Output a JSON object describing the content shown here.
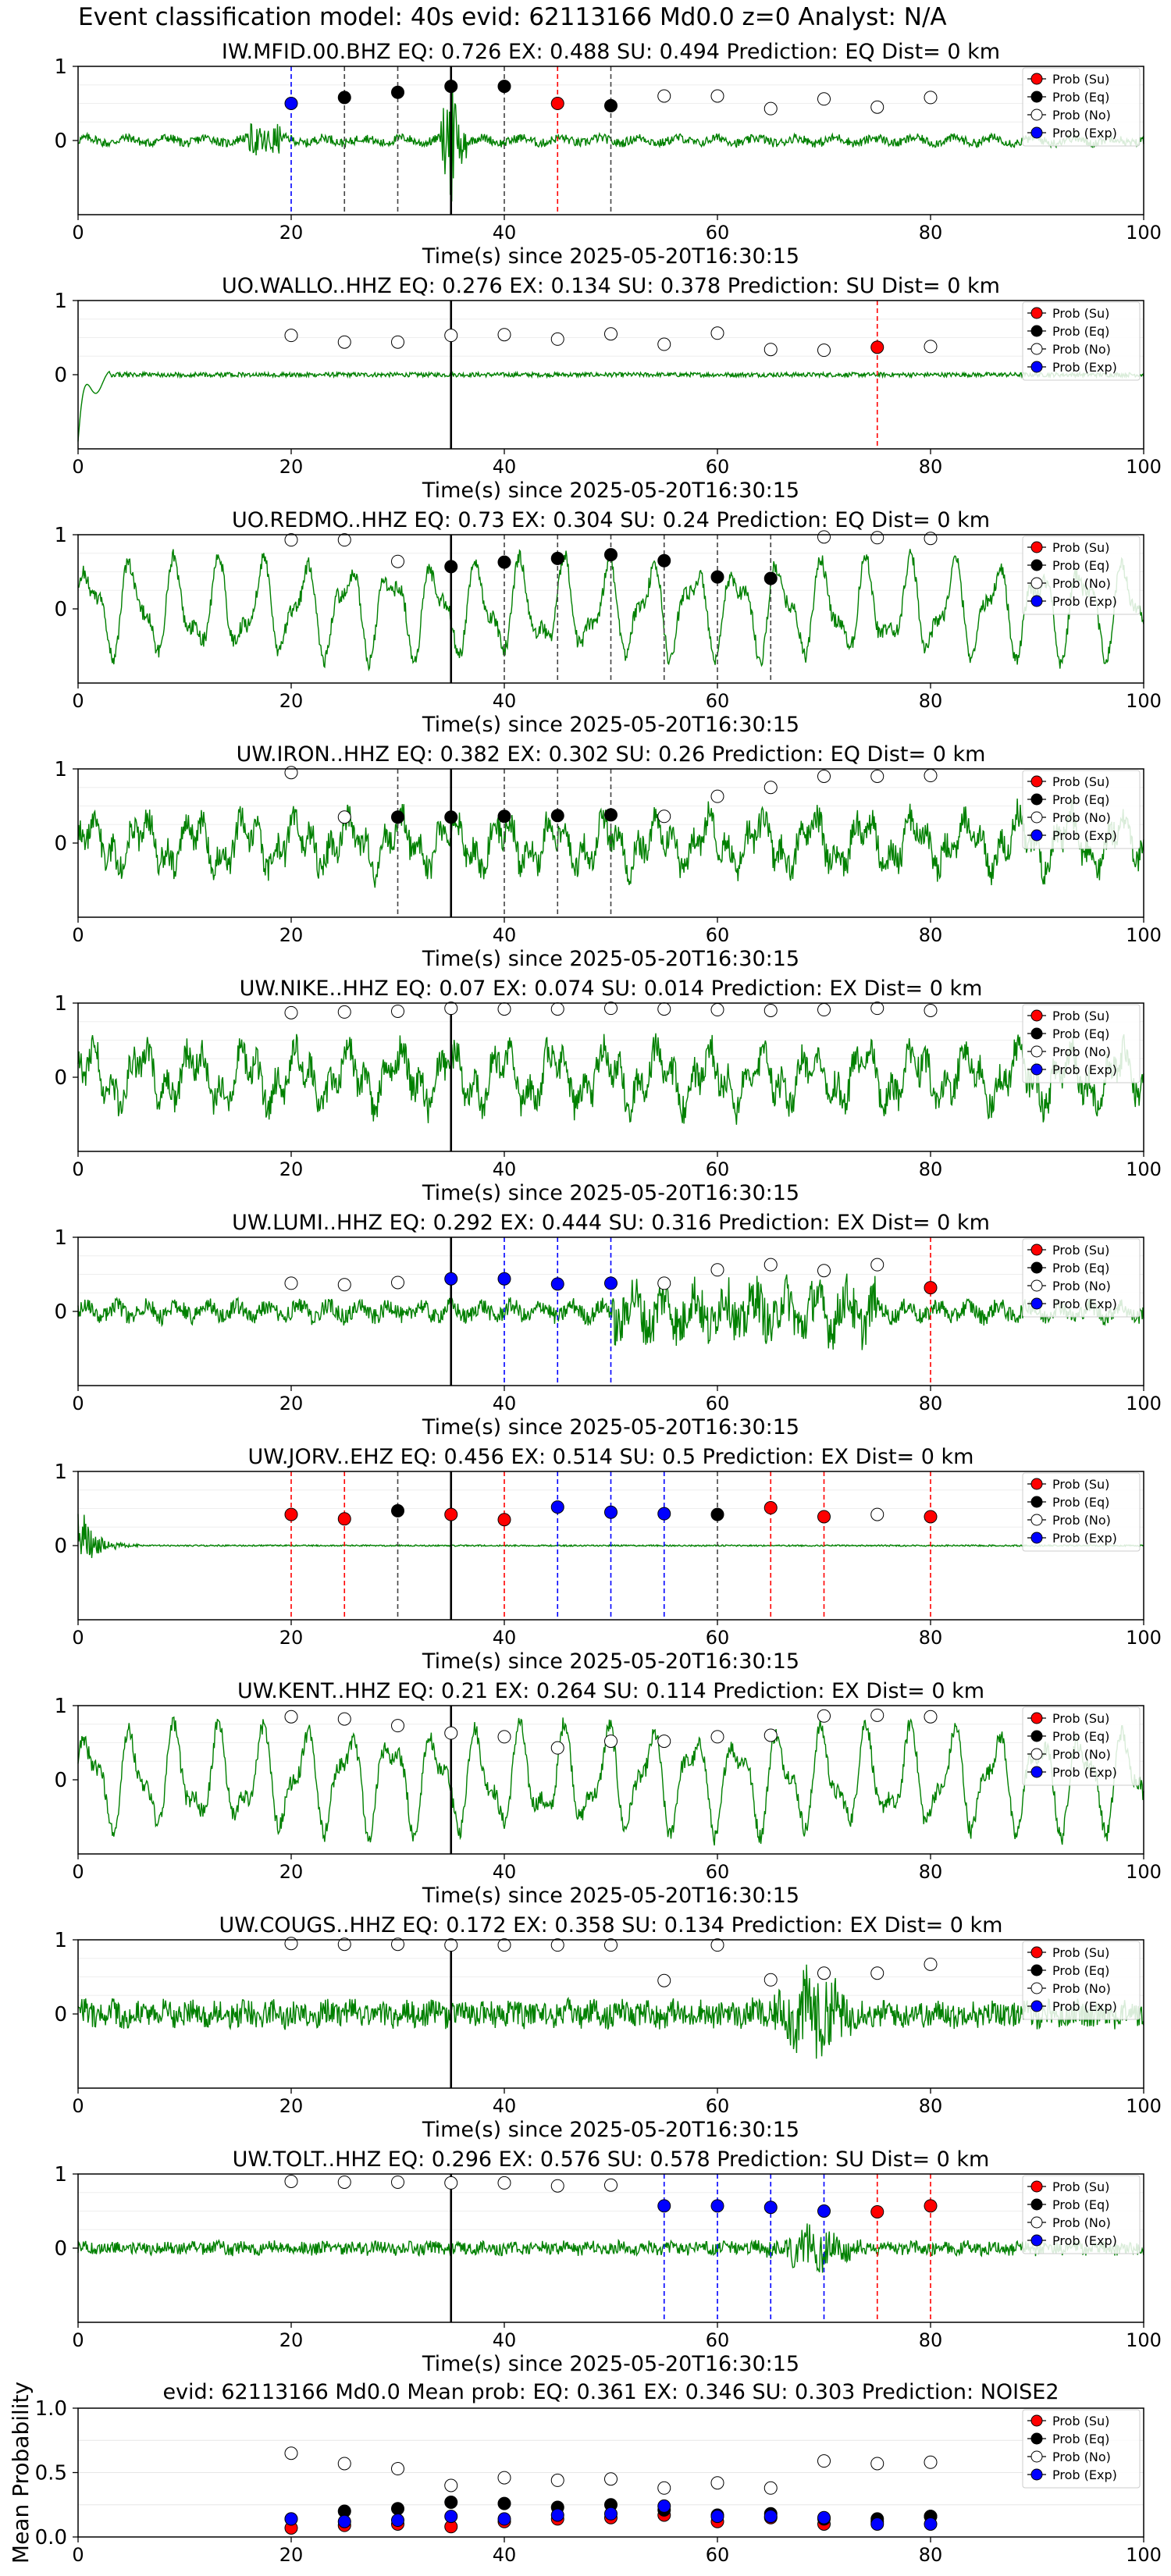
{
  "suptitle": "Event classification model: 40s evid: 62113166 Md0.0 z=0 Analyst: N/A",
  "colors": {
    "su": "#ff0000",
    "eq": "#000000",
    "no": "#ffffff",
    "exp": "#0000ff",
    "trace": "#008000",
    "vline_eq": "#444444",
    "vline_su": "#ff0000",
    "vline_exp": "#0000ff",
    "pick": "#000000"
  },
  "legend_labels": [
    "Prob (Su)",
    "Prob (Eq)",
    "Prob (No)",
    "Prob (Exp)"
  ],
  "chart_data": [
    {
      "type": "line",
      "title": "IW.MFID.00.BHZ   EQ: 0.726  EX: 0.488  SU: 0.494   Prediction: EQ    Dist= 0 km",
      "xlabel": "Time(s) since 2025-05-20T16:30:15",
      "ylabel": "",
      "xlim": [
        0,
        100
      ],
      "ylim": [
        -1,
        1
      ],
      "xticks": [
        "0",
        "20",
        "40",
        "60",
        "80",
        "100"
      ],
      "yticks": [
        "0",
        "1"
      ],
      "legend_position": "top-right",
      "pick_time": 35,
      "trace_style": "spike",
      "trace_amplitude": 0.12,
      "points": [
        {
          "t": 20,
          "c": "exp",
          "p": 0.5
        },
        {
          "t": 25,
          "c": "eq",
          "p": 0.58
        },
        {
          "t": 30,
          "c": "eq",
          "p": 0.65
        },
        {
          "t": 35,
          "c": "eq",
          "p": 0.73
        },
        {
          "t": 40,
          "c": "eq",
          "p": 0.73
        },
        {
          "t": 45,
          "c": "su",
          "p": 0.5
        },
        {
          "t": 50,
          "c": "eq",
          "p": 0.47
        },
        {
          "t": 55,
          "c": "no",
          "p": 0.6
        },
        {
          "t": 60,
          "c": "no",
          "p": 0.6
        },
        {
          "t": 65,
          "c": "no",
          "p": 0.43
        },
        {
          "t": 70,
          "c": "no",
          "p": 0.56
        },
        {
          "t": 75,
          "c": "no",
          "p": 0.45
        },
        {
          "t": 80,
          "c": "no",
          "p": 0.58
        }
      ]
    },
    {
      "type": "line",
      "title": "UO.WALLO..HHZ   EQ: 0.276  EX: 0.134  SU: 0.378   Prediction: SU    Dist= 0 km",
      "xlabel": "Time(s) since 2025-05-20T16:30:15",
      "ylabel": "",
      "xlim": [
        0,
        100
      ],
      "ylim": [
        -1,
        1
      ],
      "xticks": [
        "0",
        "20",
        "40",
        "60",
        "80",
        "100"
      ],
      "yticks": [
        "0",
        "1"
      ],
      "legend_position": "top-right",
      "pick_time": 35,
      "trace_style": "onset",
      "trace_amplitude": 0.05,
      "points": [
        {
          "t": 20,
          "c": "no",
          "p": 0.53
        },
        {
          "t": 25,
          "c": "no",
          "p": 0.44
        },
        {
          "t": 30,
          "c": "no",
          "p": 0.44
        },
        {
          "t": 35,
          "c": "no",
          "p": 0.53
        },
        {
          "t": 40,
          "c": "no",
          "p": 0.54
        },
        {
          "t": 45,
          "c": "no",
          "p": 0.48
        },
        {
          "t": 50,
          "c": "no",
          "p": 0.55
        },
        {
          "t": 55,
          "c": "no",
          "p": 0.41
        },
        {
          "t": 60,
          "c": "no",
          "p": 0.56
        },
        {
          "t": 65,
          "c": "no",
          "p": 0.34
        },
        {
          "t": 70,
          "c": "no",
          "p": 0.33
        },
        {
          "t": 75,
          "c": "su",
          "p": 0.37
        },
        {
          "t": 80,
          "c": "no",
          "p": 0.38
        }
      ]
    },
    {
      "type": "line",
      "title": "UO.REDMO..HHZ   EQ: 0.73  EX: 0.304  SU: 0.24   Prediction: EQ    Dist= 0 km",
      "xlabel": "Time(s) since 2025-05-20T16:30:15",
      "ylabel": "",
      "xlim": [
        0,
        100
      ],
      "ylim": [
        -1,
        1
      ],
      "xticks": [
        "0",
        "20",
        "40",
        "60",
        "80",
        "100"
      ],
      "yticks": [
        "0",
        "1"
      ],
      "legend_position": "top-right",
      "pick_time": 35,
      "trace_style": "wave",
      "trace_amplitude": 0.7,
      "points": [
        {
          "t": 20,
          "c": "no",
          "p": 0.93
        },
        {
          "t": 25,
          "c": "no",
          "p": 0.93
        },
        {
          "t": 30,
          "c": "no",
          "p": 0.64
        },
        {
          "t": 35,
          "c": "eq",
          "p": 0.57
        },
        {
          "t": 40,
          "c": "eq",
          "p": 0.63
        },
        {
          "t": 45,
          "c": "eq",
          "p": 0.68
        },
        {
          "t": 50,
          "c": "eq",
          "p": 0.73
        },
        {
          "t": 55,
          "c": "eq",
          "p": 0.65
        },
        {
          "t": 60,
          "c": "eq",
          "p": 0.43
        },
        {
          "t": 65,
          "c": "eq",
          "p": 0.41
        },
        {
          "t": 70,
          "c": "no",
          "p": 0.97
        },
        {
          "t": 75,
          "c": "no",
          "p": 0.96
        },
        {
          "t": 80,
          "c": "no",
          "p": 0.95
        }
      ]
    },
    {
      "type": "line",
      "title": "UW.IRON..HHZ   EQ: 0.382  EX: 0.302  SU: 0.26   Prediction: EQ    Dist= 0 km",
      "xlabel": "Time(s) since 2025-05-20T16:30:15",
      "ylabel": "",
      "xlim": [
        0,
        100
      ],
      "ylim": [
        -1,
        1
      ],
      "xticks": [
        "0",
        "20",
        "40",
        "60",
        "80",
        "100"
      ],
      "yticks": [
        "0",
        "1"
      ],
      "legend_position": "top-right",
      "pick_time": 35,
      "trace_style": "noise",
      "trace_amplitude": 0.55,
      "points": [
        {
          "t": 20,
          "c": "no",
          "p": 0.95
        },
        {
          "t": 25,
          "c": "no",
          "p": 0.35
        },
        {
          "t": 30,
          "c": "eq",
          "p": 0.35
        },
        {
          "t": 35,
          "c": "eq",
          "p": 0.35
        },
        {
          "t": 40,
          "c": "eq",
          "p": 0.36
        },
        {
          "t": 45,
          "c": "eq",
          "p": 0.37
        },
        {
          "t": 50,
          "c": "eq",
          "p": 0.38
        },
        {
          "t": 55,
          "c": "no",
          "p": 0.36
        },
        {
          "t": 60,
          "c": "no",
          "p": 0.63
        },
        {
          "t": 65,
          "c": "no",
          "p": 0.75
        },
        {
          "t": 70,
          "c": "no",
          "p": 0.9
        },
        {
          "t": 75,
          "c": "no",
          "p": 0.9
        },
        {
          "t": 80,
          "c": "no",
          "p": 0.91
        }
      ]
    },
    {
      "type": "line",
      "title": "UW.NIKE..HHZ   EQ: 0.07  EX: 0.074  SU: 0.014   Prediction: EX    Dist= 0 km",
      "xlabel": "Time(s) since 2025-05-20T16:30:15",
      "ylabel": "",
      "xlim": [
        0,
        100
      ],
      "ylim": [
        -1,
        1
      ],
      "xticks": [
        "0",
        "20",
        "40",
        "60",
        "80",
        "100"
      ],
      "yticks": [
        "0",
        "1"
      ],
      "legend_position": "top-right",
      "pick_time": 35,
      "trace_style": "noise",
      "trace_amplitude": 0.6,
      "points": [
        {
          "t": 20,
          "c": "no",
          "p": 0.87
        },
        {
          "t": 25,
          "c": "no",
          "p": 0.88
        },
        {
          "t": 30,
          "c": "no",
          "p": 0.89
        },
        {
          "t": 35,
          "c": "no",
          "p": 0.93
        },
        {
          "t": 40,
          "c": "no",
          "p": 0.92
        },
        {
          "t": 45,
          "c": "no",
          "p": 0.92
        },
        {
          "t": 50,
          "c": "no",
          "p": 0.93
        },
        {
          "t": 55,
          "c": "no",
          "p": 0.92
        },
        {
          "t": 60,
          "c": "no",
          "p": 0.91
        },
        {
          "t": 65,
          "c": "no",
          "p": 0.9
        },
        {
          "t": 70,
          "c": "no",
          "p": 0.91
        },
        {
          "t": 75,
          "c": "no",
          "p": 0.93
        },
        {
          "t": 80,
          "c": "no",
          "p": 0.9
        }
      ]
    },
    {
      "type": "line",
      "title": "UW.LUMI..HHZ   EQ: 0.292  EX: 0.444  SU: 0.316   Prediction: EX    Dist= 0 km",
      "xlabel": "Time(s) since 2025-05-20T16:30:15",
      "ylabel": "",
      "xlim": [
        0,
        100
      ],
      "ylim": [
        -1,
        1
      ],
      "xticks": [
        "0",
        "20",
        "40",
        "60",
        "80",
        "100"
      ],
      "yticks": [
        "0",
        "1"
      ],
      "legend_position": "top-right",
      "pick_time": 35,
      "trace_style": "burst",
      "trace_amplitude": 0.45,
      "points": [
        {
          "t": 20,
          "c": "no",
          "p": 0.38
        },
        {
          "t": 25,
          "c": "no",
          "p": 0.36
        },
        {
          "t": 30,
          "c": "no",
          "p": 0.39
        },
        {
          "t": 35,
          "c": "exp",
          "p": 0.44
        },
        {
          "t": 40,
          "c": "exp",
          "p": 0.44
        },
        {
          "t": 45,
          "c": "exp",
          "p": 0.37
        },
        {
          "t": 50,
          "c": "exp",
          "p": 0.38
        },
        {
          "t": 55,
          "c": "no",
          "p": 0.38
        },
        {
          "t": 60,
          "c": "no",
          "p": 0.56
        },
        {
          "t": 65,
          "c": "no",
          "p": 0.63
        },
        {
          "t": 70,
          "c": "no",
          "p": 0.55
        },
        {
          "t": 75,
          "c": "no",
          "p": 0.63
        },
        {
          "t": 80,
          "c": "su",
          "p": 0.32
        }
      ]
    },
    {
      "type": "line",
      "title": "UW.JORV..EHZ   EQ: 0.456  EX: 0.514  SU: 0.5   Prediction: EX    Dist= 0 km",
      "xlabel": "Time(s) since 2025-05-20T16:30:15",
      "ylabel": "",
      "xlim": [
        0,
        100
      ],
      "ylim": [
        -1,
        1
      ],
      "xticks": [
        "0",
        "20",
        "40",
        "60",
        "80",
        "100"
      ],
      "yticks": [
        "0",
        "1"
      ],
      "legend_position": "top-right",
      "pick_time": 35,
      "trace_style": "decay",
      "trace_amplitude": 0.05,
      "points": [
        {
          "t": 20,
          "c": "su",
          "p": 0.42
        },
        {
          "t": 25,
          "c": "su",
          "p": 0.36
        },
        {
          "t": 30,
          "c": "eq",
          "p": 0.47
        },
        {
          "t": 35,
          "c": "su",
          "p": 0.42
        },
        {
          "t": 40,
          "c": "su",
          "p": 0.35
        },
        {
          "t": 45,
          "c": "exp",
          "p": 0.52
        },
        {
          "t": 50,
          "c": "exp",
          "p": 0.45
        },
        {
          "t": 55,
          "c": "exp",
          "p": 0.43
        },
        {
          "t": 60,
          "c": "eq",
          "p": 0.42
        },
        {
          "t": 65,
          "c": "su",
          "p": 0.51
        },
        {
          "t": 70,
          "c": "su",
          "p": 0.39
        },
        {
          "t": 75,
          "c": "no",
          "p": 0.42
        },
        {
          "t": 80,
          "c": "su",
          "p": 0.39
        }
      ]
    },
    {
      "type": "line",
      "title": "UW.KENT..HHZ   EQ: 0.21  EX: 0.264  SU: 0.114   Prediction: EX    Dist= 0 km",
      "xlabel": "Time(s) since 2025-05-20T16:30:15",
      "ylabel": "",
      "xlim": [
        0,
        100
      ],
      "ylim": [
        -1,
        1
      ],
      "xticks": [
        "0",
        "20",
        "40",
        "60",
        "80",
        "100"
      ],
      "yticks": [
        "0",
        "1"
      ],
      "legend_position": "top-right",
      "pick_time": 35,
      "trace_style": "wave",
      "trace_amplitude": 0.75,
      "points": [
        {
          "t": 20,
          "c": "no",
          "p": 0.85
        },
        {
          "t": 25,
          "c": "no",
          "p": 0.82
        },
        {
          "t": 30,
          "c": "no",
          "p": 0.73
        },
        {
          "t": 35,
          "c": "no",
          "p": 0.63
        },
        {
          "t": 40,
          "c": "no",
          "p": 0.58
        },
        {
          "t": 45,
          "c": "no",
          "p": 0.43
        },
        {
          "t": 50,
          "c": "no",
          "p": 0.52
        },
        {
          "t": 55,
          "c": "no",
          "p": 0.52
        },
        {
          "t": 60,
          "c": "no",
          "p": 0.58
        },
        {
          "t": 65,
          "c": "no",
          "p": 0.6
        },
        {
          "t": 70,
          "c": "no",
          "p": 0.86
        },
        {
          "t": 75,
          "c": "no",
          "p": 0.87
        },
        {
          "t": 80,
          "c": "no",
          "p": 0.85
        }
      ]
    },
    {
      "type": "line",
      "title": "UW.COUGS..HHZ   EQ: 0.172  EX: 0.358  SU: 0.134   Prediction: EX    Dist= 0 km",
      "xlabel": "Time(s) since 2025-05-20T16:30:15",
      "ylabel": "",
      "xlim": [
        0,
        100
      ],
      "ylim": [
        -1,
        1
      ],
      "xticks": [
        "0",
        "20",
        "40",
        "60",
        "80",
        "100"
      ],
      "yticks": [
        "0",
        "1"
      ],
      "legend_position": "top-right",
      "pick_time": 35,
      "trace_style": "burstlate",
      "trace_amplitude": 0.4,
      "points": [
        {
          "t": 20,
          "c": "no",
          "p": 0.95
        },
        {
          "t": 25,
          "c": "no",
          "p": 0.94
        },
        {
          "t": 30,
          "c": "no",
          "p": 0.94
        },
        {
          "t": 35,
          "c": "no",
          "p": 0.93
        },
        {
          "t": 40,
          "c": "no",
          "p": 0.93
        },
        {
          "t": 45,
          "c": "no",
          "p": 0.93
        },
        {
          "t": 50,
          "c": "no",
          "p": 0.93
        },
        {
          "t": 55,
          "c": "no",
          "p": 0.45
        },
        {
          "t": 60,
          "c": "no",
          "p": 0.93
        },
        {
          "t": 65,
          "c": "no",
          "p": 0.46
        },
        {
          "t": 70,
          "c": "no",
          "p": 0.55
        },
        {
          "t": 75,
          "c": "no",
          "p": 0.55
        },
        {
          "t": 80,
          "c": "no",
          "p": 0.67
        }
      ]
    },
    {
      "type": "line",
      "title": "UW.TOLT..HHZ   EQ: 0.296  EX: 0.576  SU: 0.578   Prediction: SU    Dist= 0 km",
      "xlabel": "Time(s) since 2025-05-20T16:30:15",
      "ylabel": "",
      "xlim": [
        0,
        100
      ],
      "ylim": [
        -1,
        1
      ],
      "xticks": [
        "0",
        "20",
        "40",
        "60",
        "80",
        "100"
      ],
      "yticks": [
        "0",
        "1"
      ],
      "legend_position": "top-right",
      "pick_time": 35,
      "trace_style": "burstlate",
      "trace_amplitude": 0.2,
      "points": [
        {
          "t": 20,
          "c": "no",
          "p": 0.9
        },
        {
          "t": 25,
          "c": "no",
          "p": 0.89
        },
        {
          "t": 30,
          "c": "no",
          "p": 0.89
        },
        {
          "t": 35,
          "c": "no",
          "p": 0.88
        },
        {
          "t": 40,
          "c": "no",
          "p": 0.88
        },
        {
          "t": 45,
          "c": "no",
          "p": 0.84
        },
        {
          "t": 50,
          "c": "no",
          "p": 0.85
        },
        {
          "t": 55,
          "c": "exp",
          "p": 0.57
        },
        {
          "t": 60,
          "c": "exp",
          "p": 0.57
        },
        {
          "t": 65,
          "c": "exp",
          "p": 0.55
        },
        {
          "t": 70,
          "c": "exp",
          "p": 0.5
        },
        {
          "t": 75,
          "c": "su",
          "p": 0.49
        },
        {
          "t": 80,
          "c": "su",
          "p": 0.57
        }
      ]
    },
    {
      "type": "scatter",
      "title": "evid: 62113166  Md0.0   Mean prob:   EQ: 0.361  EX: 0.346  SU: 0.303   Prediction: NOISE2",
      "xlabel": "",
      "ylabel": "Mean Probability",
      "xlim": [
        0,
        100
      ],
      "ylim": [
        0,
        1
      ],
      "xticks": [
        "0",
        "20",
        "40",
        "60",
        "80",
        "100"
      ],
      "yticks": [
        "0.0",
        "0.5",
        "1.0"
      ],
      "legend_position": "top-right",
      "x": [
        20,
        25,
        30,
        35,
        40,
        45,
        50,
        55,
        60,
        65,
        70,
        75,
        80
      ],
      "series": [
        {
          "name": "Prob (Su)",
          "c": "su",
          "values": [
            0.07,
            0.09,
            0.1,
            0.08,
            0.12,
            0.14,
            0.15,
            0.17,
            0.12,
            0.15,
            0.1,
            0.12,
            0.16
          ]
        },
        {
          "name": "Prob (Eq)",
          "c": "eq",
          "values": [
            0.14,
            0.2,
            0.22,
            0.27,
            0.26,
            0.23,
            0.25,
            0.21,
            0.17,
            0.18,
            0.14,
            0.14,
            0.16
          ]
        },
        {
          "name": "Prob (No)",
          "c": "no",
          "values": [
            0.65,
            0.57,
            0.53,
            0.4,
            0.46,
            0.44,
            0.45,
            0.38,
            0.42,
            0.38,
            0.59,
            0.57,
            0.58
          ]
        },
        {
          "name": "Prob (Exp)",
          "c": "exp",
          "values": [
            0.14,
            0.12,
            0.13,
            0.16,
            0.14,
            0.17,
            0.18,
            0.24,
            0.16,
            0.16,
            0.15,
            0.1,
            0.1
          ]
        }
      ]
    }
  ]
}
